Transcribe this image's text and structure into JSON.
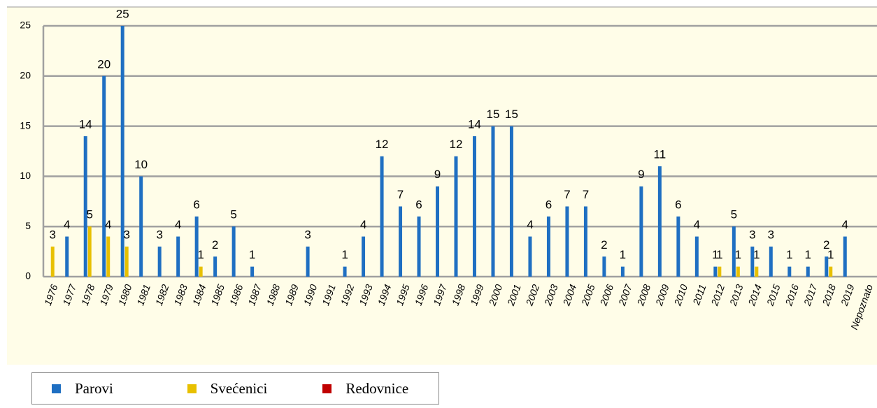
{
  "chart_data": {
    "type": "bar",
    "categories": [
      "1976",
      "1977",
      "1978",
      "1979",
      "1980",
      "1981",
      "1982",
      "1983",
      "1984",
      "1985",
      "1986",
      "1987",
      "1988",
      "1989",
      "1990",
      "1991",
      "1992",
      "1993",
      "1994",
      "1995",
      "1996",
      "1997",
      "1998",
      "1999",
      "2000",
      "2001",
      "2002",
      "2003",
      "2004",
      "2005",
      "2006",
      "2007",
      "2008",
      "2009",
      "2010",
      "2011",
      "2012",
      "2013",
      "2014",
      "2015",
      "2016",
      "2017",
      "2018",
      "2019",
      "Nepoznato"
    ],
    "series": [
      {
        "name": "Parovi",
        "color": "#1f6fc2",
        "values": [
          null,
          4,
          14,
          20,
          25,
          10,
          3,
          4,
          6,
          2,
          5,
          1,
          null,
          null,
          3,
          null,
          1,
          4,
          12,
          7,
          6,
          9,
          12,
          14,
          15,
          15,
          4,
          6,
          7,
          7,
          2,
          1,
          9,
          11,
          6,
          4,
          1,
          5,
          3,
          3,
          1,
          1,
          2,
          4,
          null
        ]
      },
      {
        "name": "Svećenici",
        "color": "#e8c000",
        "values": [
          3,
          null,
          5,
          4,
          3,
          null,
          null,
          null,
          1,
          null,
          null,
          null,
          null,
          null,
          null,
          null,
          null,
          null,
          null,
          null,
          null,
          null,
          null,
          null,
          null,
          null,
          null,
          null,
          null,
          null,
          null,
          null,
          null,
          null,
          null,
          null,
          1,
          1,
          1,
          null,
          null,
          null,
          1,
          null,
          null
        ]
      },
      {
        "name": "Redovnice",
        "color": "#c00000",
        "values": [
          null,
          null,
          null,
          null,
          null,
          null,
          null,
          null,
          null,
          null,
          null,
          null,
          null,
          null,
          null,
          null,
          null,
          null,
          null,
          null,
          null,
          null,
          null,
          null,
          null,
          null,
          null,
          null,
          null,
          null,
          null,
          null,
          null,
          null,
          null,
          null,
          null,
          null,
          null,
          null,
          null,
          null,
          null,
          null,
          null
        ]
      }
    ],
    "ylim": [
      0,
      25
    ],
    "yticks": [
      0,
      5,
      10,
      15,
      20,
      25
    ],
    "grid": true,
    "legend": "bottom-left"
  }
}
